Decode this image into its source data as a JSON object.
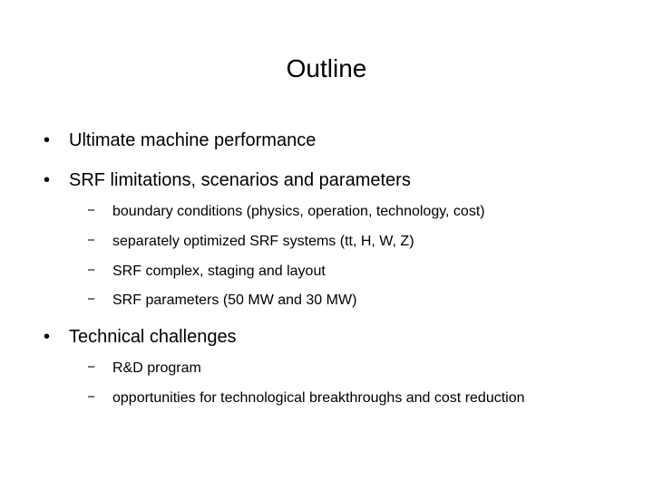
{
  "slide": {
    "title": "Outline",
    "background_color": "#ffffff",
    "text_color": "#000000",
    "title_fontsize": 28,
    "level1_fontsize": 20,
    "level2_fontsize": 16,
    "level1_bullet": "•",
    "level2_bullet": "−",
    "items": [
      {
        "text": "Ultimate machine performance",
        "sub": []
      },
      {
        "text": "SRF limitations, scenarios and parameters",
        "sub": [
          "boundary conditions (physics, operation, technology, cost)",
          "separately optimized SRF systems (tt, H, W, Z)",
          "SRF complex, staging and layout",
          "SRF parameters (50 MW and 30 MW)"
        ]
      },
      {
        "text": "Technical challenges",
        "sub": [
          "R&D program",
          "opportunities for technological breakthroughs and cost reduction"
        ]
      }
    ]
  }
}
